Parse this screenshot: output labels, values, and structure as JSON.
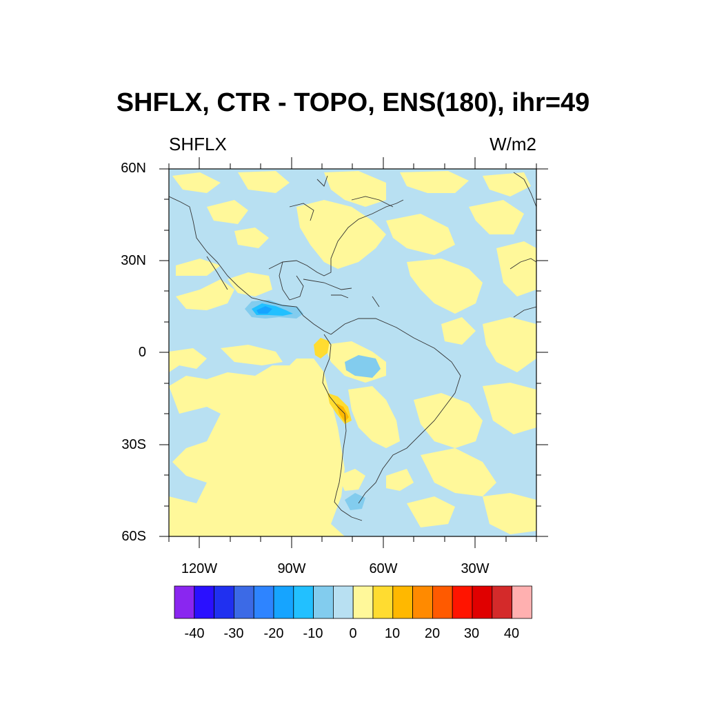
{
  "title": "SHFLX, CTR - TOPO, ENS(180), ihr=49",
  "subtitle_left": "SHFLX",
  "subtitle_right": "W/m2",
  "lat_labels": [
    "60N",
    "30N",
    "0",
    "30S",
    "60S"
  ],
  "lon_labels": [
    "120W",
    "90W",
    "60W",
    "30W"
  ],
  "colorbar": {
    "tick_labels": [
      "-40",
      "-30",
      "-20",
      "-10",
      "0",
      "10",
      "20",
      "30",
      "40"
    ],
    "colors": [
      "#8a26f0",
      "#2a10ff",
      "#2030f0",
      "#3c6ae6",
      "#2e84ff",
      "#16a4ff",
      "#22c0ff",
      "#82ccee",
      "#b8e0f2",
      "#fff89a",
      "#ffdc30",
      "#ffb800",
      "#ff8a00",
      "#ff5a00",
      "#ff1400",
      "#e00000",
      "#d42a2a",
      "#ffb0b0"
    ]
  },
  "map": {
    "extent": {
      "lon_min": -130,
      "lon_max": -10,
      "lat_min": -60,
      "lat_max": 60
    },
    "background_color": "#b8e0f2",
    "positive_color": "#fff89a"
  }
}
